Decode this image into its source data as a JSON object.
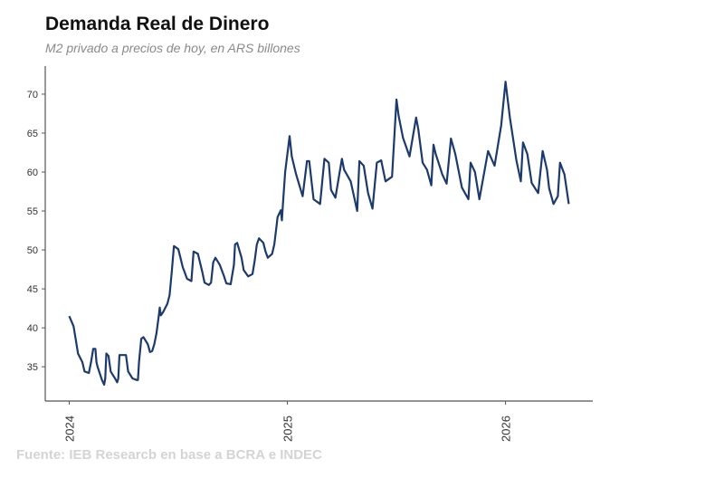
{
  "chart_data": {
    "type": "line",
    "title": "Demanda Real de Dinero",
    "subtitle": "M2 privado a precios de hoy, en ARS billones",
    "source": "Fuente: IEB Researcb en base a BCRA e INDEC",
    "xlabel": "",
    "ylabel": "",
    "xlim": [
      2023.89,
      2026.4
    ],
    "ylim": [
      30.6,
      73.6
    ],
    "x_ticks": [
      "2024",
      "2025",
      "2026"
    ],
    "y_ticks": [
      35,
      40,
      45,
      50,
      55,
      60,
      65,
      70
    ],
    "grid": false,
    "line_color": "#1c3a6b",
    "series": [
      {
        "x": [
          2024.0,
          2024.02,
          2024.03,
          2024.04,
          2024.06,
          2024.07,
          2024.09,
          2024.1,
          2024.11,
          2024.12,
          2024.125,
          2024.13,
          2024.15,
          2024.16,
          2024.165,
          2024.17,
          2024.18,
          2024.19,
          2024.21,
          2024.22,
          2024.225,
          2024.23,
          2024.26,
          2024.27,
          2024.29,
          2024.31,
          2024.315,
          2024.32,
          2024.33,
          2024.34,
          2024.36,
          2024.37,
          2024.38,
          2024.39,
          2024.4,
          2024.41,
          2024.415,
          2024.42,
          2024.43,
          2024.45,
          2024.46,
          2024.47,
          2024.48,
          2024.5,
          2024.51,
          2024.52,
          2024.54,
          2024.56,
          2024.57,
          2024.59,
          2024.61,
          2024.62,
          2024.64,
          2024.65,
          2024.66,
          2024.67,
          2024.69,
          2024.71,
          2024.72,
          2024.74,
          2024.755,
          2024.76,
          2024.77,
          2024.79,
          2024.8,
          2024.82,
          2024.84,
          2024.85,
          2024.86,
          2024.87,
          2024.89,
          2024.9,
          2024.91,
          2024.93,
          2024.94,
          2024.95,
          2024.955,
          2024.97,
          2024.975,
          2024.98,
          2024.99,
          2025.01,
          2025.02,
          2025.04,
          2025.07,
          2025.09,
          2025.1,
          2025.12,
          2025.15,
          2025.17,
          2025.19,
          2025.2,
          2025.22,
          2025.25,
          2025.26,
          2025.29,
          2025.32,
          2025.33,
          2025.35,
          2025.37,
          2025.39,
          2025.41,
          2025.43,
          2025.45,
          2025.48,
          2025.5,
          2025.51,
          2025.53,
          2025.56,
          2025.59,
          2025.6,
          2025.62,
          2025.64,
          2025.66,
          2025.67,
          2025.68,
          2025.71,
          2025.73,
          2025.75,
          2025.77,
          2025.8,
          2025.83,
          2025.84,
          2025.86,
          2025.88,
          2025.92,
          2025.95,
          2025.98,
          2026.0,
          2026.02,
          2026.05,
          2026.07,
          2026.08,
          2026.1,
          2026.12,
          2026.15,
          2026.17,
          2026.19,
          2026.2,
          2026.22,
          2026.24,
          2026.25,
          2026.27,
          2026.29
        ],
        "values": [
          41.5,
          40.2,
          38.5,
          36.7,
          35.6,
          34.4,
          34.2,
          35.6,
          37.3,
          37.3,
          35.6,
          35.0,
          33.3,
          32.7,
          33.5,
          36.7,
          36.4,
          34.4,
          33.5,
          33.0,
          33.5,
          36.5,
          36.5,
          34.4,
          33.5,
          33.3,
          33.3,
          35.6,
          38.6,
          38.8,
          37.9,
          36.9,
          37.0,
          37.9,
          39.3,
          41.4,
          42.6,
          41.6,
          42.0,
          43.1,
          44.2,
          47.2,
          50.5,
          50.1,
          49.0,
          47.8,
          46.3,
          46.0,
          49.8,
          49.5,
          47.2,
          45.8,
          45.5,
          45.8,
          48.4,
          49.0,
          48.1,
          46.6,
          45.7,
          45.6,
          48.1,
          50.7,
          50.9,
          49.0,
          47.4,
          46.6,
          46.9,
          48.6,
          50.7,
          51.5,
          50.9,
          49.8,
          49.0,
          49.5,
          50.7,
          53.0,
          54.2,
          55.1,
          53.8,
          56.0,
          60.0,
          64.6,
          62.0,
          59.7,
          56.9,
          61.4,
          61.4,
          56.5,
          55.9,
          61.7,
          61.2,
          57.7,
          56.7,
          61.7,
          60.3,
          58.8,
          55.0,
          61.4,
          60.8,
          57.3,
          55.3,
          61.2,
          61.5,
          58.8,
          59.4,
          69.3,
          67.2,
          64.4,
          62.0,
          67.0,
          65.5,
          61.2,
          60.3,
          58.3,
          63.5,
          62.3,
          59.7,
          58.5,
          64.3,
          62.3,
          58.0,
          56.5,
          61.2,
          60.0,
          56.5,
          62.7,
          60.8,
          66.0,
          71.6,
          67.0,
          61.5,
          58.8,
          63.8,
          62.3,
          58.6,
          57.3,
          62.7,
          60.3,
          57.9,
          55.9,
          56.9,
          61.2,
          59.7,
          55.9
        ]
      }
    ]
  }
}
